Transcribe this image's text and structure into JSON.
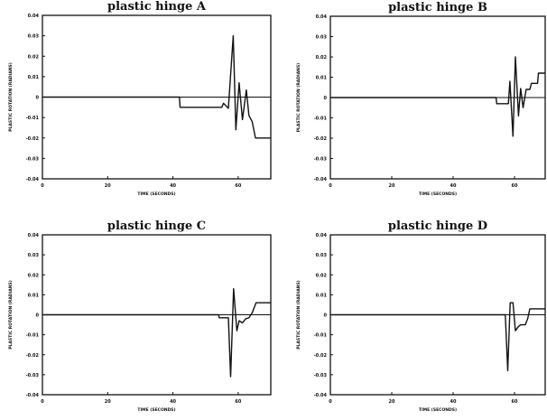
{
  "chart_data": [
    {
      "type": "line",
      "title": "plastic hinge A",
      "xlabel": "TIME (SECONDS)",
      "ylabel": "PLASTIC ROTATION (RADIANS)",
      "xlim": [
        0,
        70
      ],
      "ylim": [
        -0.04,
        0.04
      ],
      "xticks": [
        "0",
        "20",
        "40",
        "60"
      ],
      "yticks": [
        "0.04",
        "0.03",
        "0.02",
        "0.01",
        "0",
        "-0.01",
        "-0.02",
        "-0.03",
        "-0.04"
      ],
      "grid": false,
      "x": [
        0,
        42,
        42.2,
        55,
        55.5,
        57,
        58.5,
        59.3,
        60.3,
        61.3,
        62.5,
        63.3,
        64.3,
        65.3,
        66.3,
        67.5,
        70
      ],
      "y": [
        0,
        0,
        -0.005,
        -0.005,
        -0.003,
        -0.0055,
        0.03,
        -0.016,
        0.007,
        -0.011,
        0.0035,
        -0.009,
        -0.012,
        -0.02,
        -0.02,
        -0.02,
        -0.02
      ]
    },
    {
      "type": "line",
      "title": "plastic hinge B",
      "xlabel": "TIME (SECONDS)",
      "ylabel": "PLASTIC ROTATION (RADIANS)",
      "xlim": [
        0,
        70
      ],
      "ylim": [
        -0.04,
        0.04
      ],
      "xticks": [
        "0",
        "20",
        "40",
        "60"
      ],
      "yticks": [
        "0.04",
        "0.03",
        "0.02",
        "0.01",
        "0",
        "-0.01",
        "-0.02",
        "-0.03",
        "-0.04"
      ],
      "grid": false,
      "x": [
        0,
        54,
        54.2,
        58,
        58.5,
        59.5,
        60.3,
        61.3,
        62,
        62.8,
        63.8,
        65,
        65.5,
        67.5,
        67.8,
        70
      ],
      "y": [
        0,
        0,
        -0.003,
        -0.003,
        0.008,
        -0.019,
        0.02,
        -0.009,
        0.0045,
        -0.005,
        0.004,
        0.004,
        0.007,
        0.007,
        0.012,
        0.012
      ]
    },
    {
      "type": "line",
      "title": "plastic hinge C",
      "xlabel": "TIME (SECONDS)",
      "ylabel": "PLASTIC ROTATION (RADIANS)",
      "xlim": [
        0,
        70
      ],
      "ylim": [
        -0.04,
        0.04
      ],
      "xticks": [
        "0",
        "20",
        "40",
        "60"
      ],
      "yticks": [
        "0.04",
        "0.03",
        "0.02",
        "0.01",
        "0",
        "-0.01",
        "-0.02",
        "-0.03",
        "-0.04"
      ],
      "grid": false,
      "x": [
        0,
        54,
        54.2,
        57,
        57.7,
        58.6,
        59.6,
        60.3,
        61.3,
        62.3,
        63.3,
        64.3,
        65.5,
        67.5,
        70
      ],
      "y": [
        0,
        0,
        -0.0015,
        -0.0015,
        -0.031,
        0.013,
        -0.008,
        -0.003,
        -0.004,
        -0.002,
        -0.0015,
        0.001,
        0.006,
        0.006,
        0.006
      ]
    },
    {
      "type": "line",
      "title": "plastic hinge D",
      "xlabel": "TIME (SECONDS)",
      "ylabel": "PLASTIC ROTATION (RADIANS)",
      "xlim": [
        0,
        70
      ],
      "ylim": [
        -0.04,
        0.04
      ],
      "xticks": [
        "0",
        "20",
        "40",
        "60"
      ],
      "yticks": [
        "0.04",
        "0.03",
        "0.02",
        "0.01",
        "0",
        "-0.01",
        "-0.02",
        "-0.03",
        "-0.04"
      ],
      "grid": false,
      "x": [
        0,
        57,
        57.8,
        58.6,
        59.5,
        60.3,
        61.2,
        62,
        63.5,
        64.3,
        65,
        66.5,
        70
      ],
      "y": [
        0,
        0,
        -0.028,
        0.006,
        0.006,
        -0.008,
        -0.006,
        -0.005,
        -0.005,
        -0.002,
        0.003,
        0.003,
        0.003
      ]
    }
  ]
}
